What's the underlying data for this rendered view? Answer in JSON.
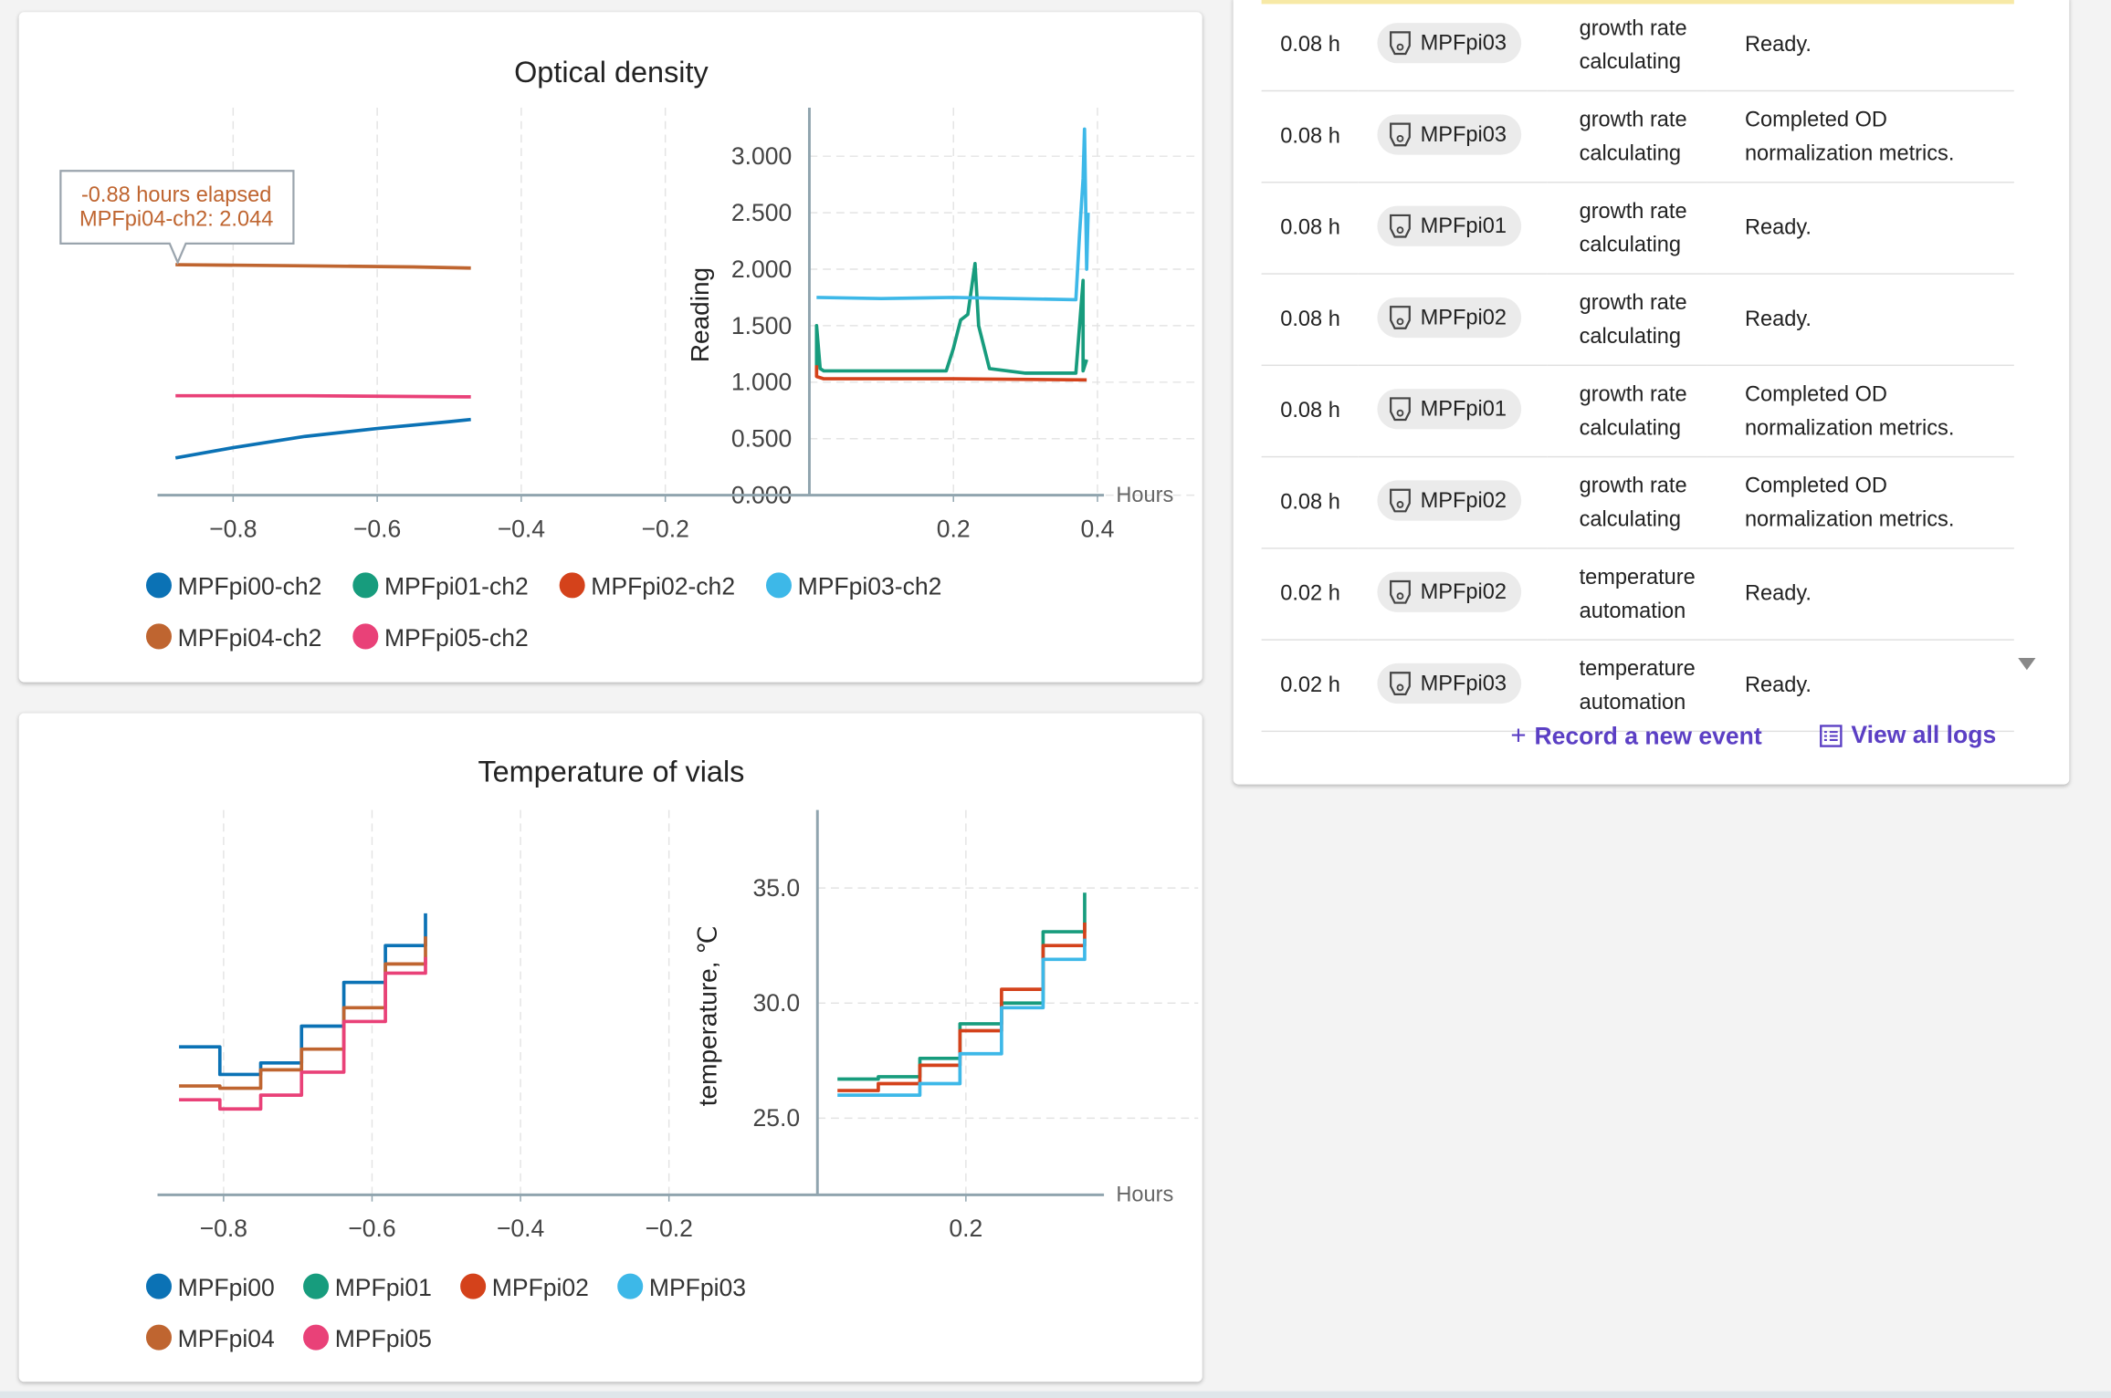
{
  "od_chart": {
    "type": "line",
    "title": "Optical density",
    "ylabel": "Reading",
    "xlabel": "Hours",
    "xlim": [
      -0.905,
      0.409
    ],
    "ylim": [
      0,
      3.43
    ],
    "xticks": [
      {
        "value": -0.8,
        "label": "−0.8"
      },
      {
        "value": -0.6,
        "label": "−0.6"
      },
      {
        "value": -0.4,
        "label": "−0.4"
      },
      {
        "value": -0.2,
        "label": "−0.2"
      },
      0.2,
      0.4
    ],
    "yticks": [
      {
        "value": 0,
        "label": "0.000"
      },
      {
        "value": 0.5,
        "label": "0.500"
      },
      {
        "value": 1,
        "label": "1.000"
      },
      {
        "value": 1.5,
        "label": "1.500"
      },
      {
        "value": 2,
        "label": "2.000"
      },
      {
        "value": 2.5,
        "label": "2.500"
      },
      {
        "value": 3,
        "label": "3.000"
      }
    ],
    "grid": true,
    "annotation": [
      "-0.88 hours elapsed",
      "MPFpi04-ch2: 2.044"
    ],
    "series": [
      {
        "name": "MPFpi00-ch2",
        "color": "#0b72b5",
        "x": [
          -0.88,
          -0.8,
          -0.7,
          -0.6,
          -0.5,
          -0.47
        ],
        "values": [
          0.33,
          0.42,
          0.52,
          0.59,
          0.65,
          0.67
        ]
      },
      {
        "name": "MPFpi01-ch2",
        "color": "#179c7d",
        "x": [
          0.01,
          0.01,
          0.015,
          0.02,
          0.05,
          0.19,
          0.2,
          0.21,
          0.22,
          0.23,
          0.235,
          0.25,
          0.3,
          0.37,
          0.38,
          0.38,
          0.385
        ],
        "values": [
          1.1,
          1.5,
          1.12,
          1.1,
          1.1,
          1.1,
          1.3,
          1.55,
          1.6,
          2.05,
          1.5,
          1.12,
          1.08,
          1.08,
          1.9,
          1.1,
          1.2
        ]
      },
      {
        "name": "MPFpi02-ch2",
        "color": "#d4421b",
        "x": [
          0.01,
          0.01,
          0.02,
          0.2,
          0.385
        ],
        "values": [
          1.15,
          1.05,
          1.03,
          1.03,
          1.02
        ]
      },
      {
        "name": "MPFpi03-ch2",
        "color": "#3db8e8",
        "x": [
          0.01,
          0.1,
          0.2,
          0.37,
          0.375,
          0.38,
          0.382,
          0.385,
          0.387
        ],
        "values": [
          1.75,
          1.74,
          1.75,
          1.73,
          2.3,
          2.8,
          3.24,
          2.0,
          2.5
        ]
      },
      {
        "name": "MPFpi04-ch2",
        "color": "#bf6530",
        "x": [
          -0.88,
          -0.7,
          -0.55,
          -0.47
        ],
        "values": [
          2.04,
          2.03,
          2.02,
          2.01
        ]
      },
      {
        "name": "MPFpi05-ch2",
        "color": "#e94178",
        "x": [
          -0.88,
          -0.7,
          -0.47
        ],
        "values": [
          0.88,
          0.88,
          0.87
        ]
      }
    ]
  },
  "temp_chart": {
    "type": "step",
    "title": "Temperature of vials",
    "ylabel": "temperature, ℃",
    "xlabel": "Hours",
    "xlim": [
      -0.889,
      0.386
    ],
    "ylim": [
      21.67,
      38.39
    ],
    "xticks": [
      {
        "value": -0.8,
        "label": "−0.8"
      },
      {
        "value": -0.6,
        "label": "−0.6"
      },
      {
        "value": -0.4,
        "label": "−0.4"
      },
      {
        "value": -0.2,
        "label": "−0.2"
      },
      0.2
    ],
    "yticks": [
      {
        "value": 25,
        "label": "25.0"
      },
      {
        "value": 30,
        "label": "30.0"
      },
      {
        "value": 35,
        "label": "35.0"
      }
    ],
    "grid": true,
    "series": [
      {
        "name": "MPFpi00",
        "color": "#0b72b5",
        "x": [
          -0.86,
          -0.805,
          -0.75,
          -0.695,
          -0.638,
          -0.582,
          -0.528
        ],
        "values": [
          28.1,
          26.9,
          27.4,
          29.0,
          30.9,
          32.5,
          33.9
        ]
      },
      {
        "name": "MPFpi01",
        "color": "#179c7d",
        "x": [
          0.027,
          0.082,
          0.138,
          0.192,
          0.248,
          0.304,
          0.36
        ],
        "values": [
          26.7,
          26.8,
          27.6,
          29.1,
          30.0,
          33.1,
          34.8
        ]
      },
      {
        "name": "MPFpi02",
        "color": "#d4421b",
        "x": [
          0.027,
          0.082,
          0.138,
          0.192,
          0.248,
          0.304,
          0.36
        ],
        "values": [
          26.2,
          26.5,
          27.3,
          28.8,
          30.6,
          32.5,
          33.5
        ]
      },
      {
        "name": "MPFpi03",
        "color": "#3db8e8",
        "x": [
          0.027,
          0.082,
          0.138,
          0.192,
          0.248,
          0.304,
          0.36
        ],
        "values": [
          26.0,
          26.0,
          26.5,
          27.8,
          29.8,
          31.9,
          32.8
        ]
      },
      {
        "name": "MPFpi04",
        "color": "#bf6530",
        "x": [
          -0.86,
          -0.805,
          -0.75,
          -0.695,
          -0.638,
          -0.582,
          -0.528
        ],
        "values": [
          26.4,
          26.3,
          27.1,
          28.0,
          29.8,
          31.7,
          32.9
        ]
      },
      {
        "name": "MPFpi05",
        "color": "#e94178",
        "x": [
          -0.86,
          -0.805,
          -0.75,
          -0.695,
          -0.638,
          -0.582,
          -0.528
        ],
        "values": [
          25.8,
          25.4,
          26.0,
          27.0,
          29.2,
          31.3,
          32.0
        ]
      }
    ]
  },
  "event_log": {
    "rows": [
      {
        "time": "0.08 h",
        "unit": "MPFpi03",
        "event": "growth rate calculating",
        "message": "Ready."
      },
      {
        "time": "0.08 h",
        "unit": "MPFpi03",
        "event": "growth rate calculating",
        "message": "Completed OD normalization metrics."
      },
      {
        "time": "0.08 h",
        "unit": "MPFpi01",
        "event": "growth rate calculating",
        "message": "Ready."
      },
      {
        "time": "0.08 h",
        "unit": "MPFpi02",
        "event": "growth rate calculating",
        "message": "Ready."
      },
      {
        "time": "0.08 h",
        "unit": "MPFpi01",
        "event": "growth rate calculating",
        "message": "Completed OD normalization metrics."
      },
      {
        "time": "0.08 h",
        "unit": "MPFpi02",
        "event": "growth rate calculating",
        "message": "Completed OD normalization metrics."
      },
      {
        "time": "0.02 h",
        "unit": "MPFpi02",
        "event": "temperature automation",
        "message": "Ready."
      },
      {
        "time": "0.02 h",
        "unit": "MPFpi03",
        "event": "temperature automation",
        "message": "Ready."
      }
    ],
    "actions": [
      "Record a new event",
      "View all logs"
    ]
  }
}
